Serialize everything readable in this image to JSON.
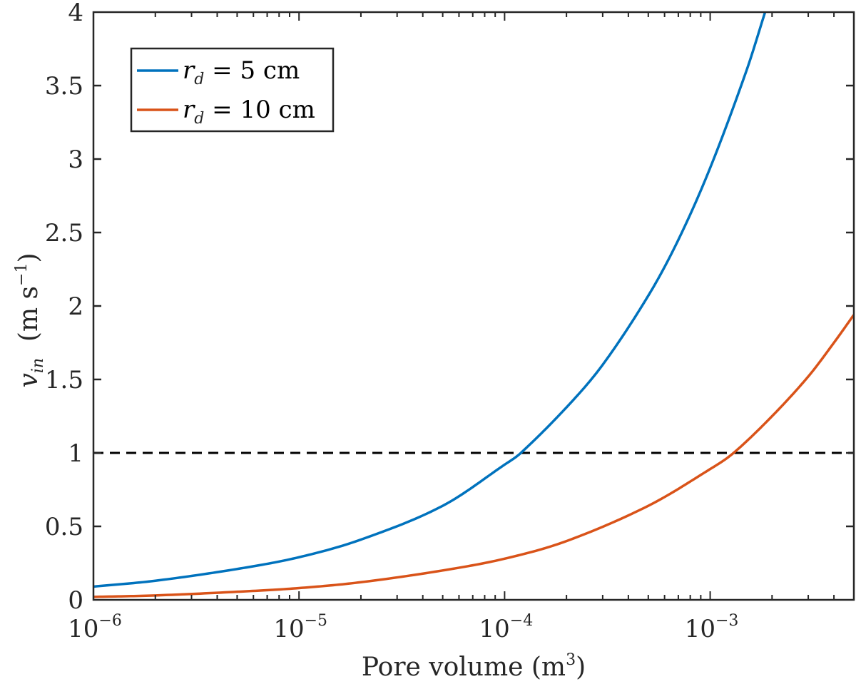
{
  "chart_data": {
    "type": "line",
    "xscale": "log",
    "xlim": [
      1e-06,
      0.005
    ],
    "ylim": [
      0,
      4
    ],
    "x_ticks": [
      {
        "base": "10",
        "exp": "−6"
      },
      {
        "base": "10",
        "exp": "−5"
      },
      {
        "base": "10",
        "exp": "−4"
      },
      {
        "base": "10",
        "exp": "−3"
      }
    ],
    "y_ticks": [
      "0",
      "0.5",
      "1",
      "1.5",
      "2",
      "2.5",
      "3",
      "3.5",
      "4"
    ],
    "xlabel": {
      "text": "Pore volume (m",
      "sup": "3",
      "close": ")"
    },
    "ylabel": {
      "var": "v",
      "sub": "in",
      "units": "(m s",
      "sup": "−1",
      "close": ")"
    },
    "reference_line": {
      "y": 1,
      "style": "dashed",
      "color": "#000000"
    },
    "legend_position": "top-left",
    "series": [
      {
        "name": "r_d = 5 cm",
        "legend": {
          "var": "r",
          "sub": "d",
          "rest": " = 5 cm"
        },
        "color": "#0072BD",
        "points": [
          [
            1e-06,
            0.09
          ],
          [
            2e-06,
            0.13
          ],
          [
            5e-06,
            0.21
          ],
          [
            1e-05,
            0.29
          ],
          [
            2e-05,
            0.41
          ],
          [
            5e-05,
            0.64
          ],
          [
            0.0001,
            0.92
          ],
          [
            0.00012,
            1.0
          ],
          [
            0.0002,
            1.31
          ],
          [
            0.0003,
            1.6
          ],
          [
            0.0005,
            2.07
          ],
          [
            0.0007,
            2.45
          ],
          [
            0.001,
            2.94
          ],
          [
            0.0015,
            3.6
          ],
          [
            0.00185,
            4.0
          ]
        ]
      },
      {
        "name": "r_d = 10 cm",
        "legend": {
          "var": "r",
          "sub": "d",
          "rest": " = 10 cm"
        },
        "color": "#D95319",
        "points": [
          [
            1e-06,
            0.02
          ],
          [
            2e-06,
            0.03
          ],
          [
            5e-06,
            0.055
          ],
          [
            1e-05,
            0.08
          ],
          [
            2e-05,
            0.12
          ],
          [
            5e-05,
            0.2
          ],
          [
            0.0001,
            0.28
          ],
          [
            0.0002,
            0.4
          ],
          [
            0.0005,
            0.64
          ],
          [
            0.001,
            0.89
          ],
          [
            0.0013,
            1.0
          ],
          [
            0.002,
            1.25
          ],
          [
            0.003,
            1.52
          ],
          [
            0.004,
            1.75
          ],
          [
            0.005,
            1.94
          ]
        ]
      }
    ]
  }
}
